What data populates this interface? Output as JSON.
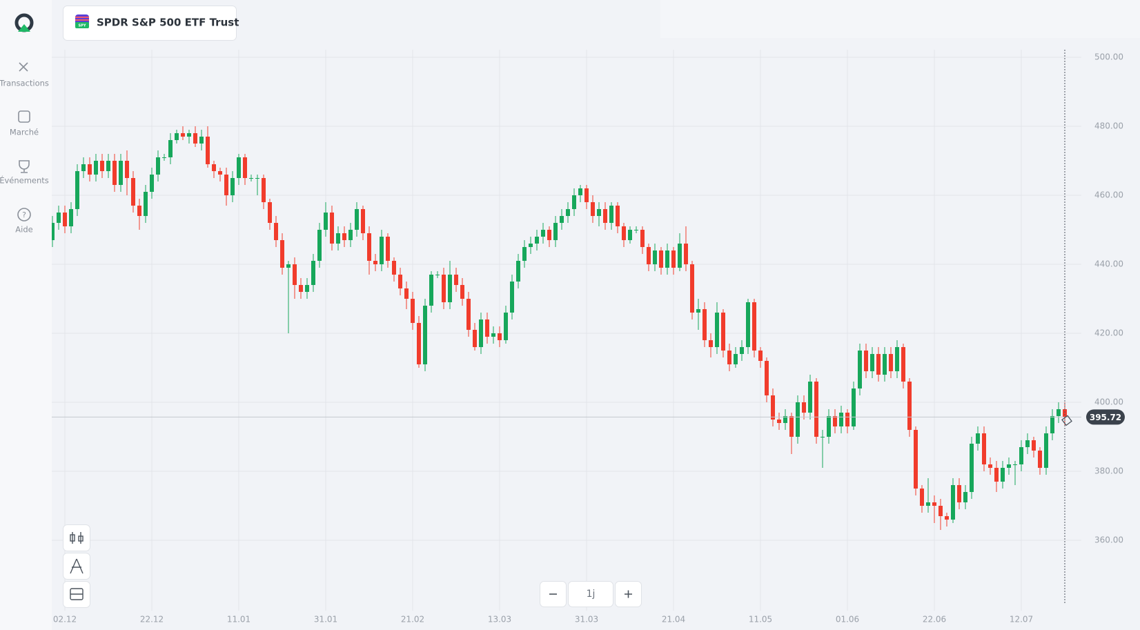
{
  "header": {
    "instrument": "SPDR S&P 500 ETF Trust",
    "icon_label": "SPY"
  },
  "nav": [
    "Transactions",
    "Marché",
    "Événements",
    "Aide"
  ],
  "zoom": {
    "label": "1j"
  },
  "chart_data": {
    "type": "candlestick",
    "up_color": "#17a75b",
    "down_color": "#f13c2c",
    "categories": [
      null,
      null,
      "02.12",
      null,
      null,
      null,
      null,
      null,
      null,
      null,
      null,
      null,
      null,
      null,
      null,
      null,
      "22.12",
      null,
      null,
      null,
      null,
      null,
      null,
      null,
      null,
      null,
      null,
      null,
      null,
      null,
      "11.01",
      null,
      null,
      null,
      null,
      null,
      null,
      null,
      null,
      null,
      null,
      null,
      null,
      null,
      "31.01",
      null,
      null,
      null,
      null,
      null,
      null,
      null,
      null,
      null,
      null,
      null,
      null,
      null,
      "21.02",
      null,
      null,
      null,
      null,
      null,
      null,
      null,
      null,
      null,
      null,
      null,
      null,
      null,
      "13.03",
      null,
      null,
      null,
      null,
      null,
      null,
      null,
      null,
      null,
      null,
      null,
      null,
      null,
      "31.03",
      null,
      null,
      null,
      null,
      null,
      null,
      null,
      null,
      null,
      null,
      null,
      null,
      null,
      "21.04",
      null,
      null,
      null,
      null,
      null,
      null,
      null,
      null,
      null,
      null,
      null,
      null,
      null,
      "11.05",
      null,
      null,
      null,
      null,
      null,
      null,
      null,
      null,
      null,
      null,
      null,
      null,
      null,
      "01.06",
      null,
      null,
      null,
      null,
      null,
      null,
      null,
      null,
      null,
      null,
      null,
      null,
      null,
      "22.06",
      null,
      null,
      null,
      null,
      null,
      null,
      null,
      null,
      null,
      null,
      null,
      null,
      null,
      "12.07",
      null,
      null,
      null,
      null,
      null,
      null,
      null
    ],
    "open": [
      447,
      452,
      455,
      451,
      456,
      467,
      469,
      466,
      470,
      467,
      470,
      463,
      470,
      465,
      457,
      454,
      461,
      466,
      471,
      471,
      476,
      478,
      477,
      478,
      475,
      477,
      469,
      467,
      466,
      460,
      465,
      471,
      465,
      465,
      465,
      458,
      452,
      447,
      439,
      440,
      434,
      432,
      434,
      441,
      450,
      455,
      446,
      449,
      447,
      450,
      456,
      449,
      441,
      440,
      448,
      441,
      437,
      433,
      430,
      423,
      411,
      428,
      437,
      437,
      429,
      437,
      434,
      430,
      421,
      416,
      424,
      419,
      420,
      418,
      426,
      435,
      441,
      445,
      446,
      448,
      450,
      447,
      452,
      454,
      456,
      460,
      462,
      458,
      454,
      456,
      452,
      457,
      451,
      447,
      450,
      450,
      445,
      440,
      444,
      439,
      444,
      439,
      446,
      440,
      426,
      427,
      418,
      416,
      426,
      415,
      411,
      414,
      416,
      429,
      415,
      412,
      402,
      395,
      394,
      396,
      390,
      400,
      397,
      406,
      390,
      390,
      396,
      393,
      397,
      393,
      404,
      415,
      409,
      414,
      408,
      414,
      409,
      416,
      406,
      392,
      375,
      370,
      371,
      370,
      367,
      366,
      376,
      371,
      374,
      388,
      391,
      382,
      381,
      377,
      381,
      382,
      382,
      387,
      389,
      386,
      381,
      391,
      396,
      398
    ],
    "high": [
      454,
      457,
      457,
      458,
      469,
      471,
      471,
      472,
      472,
      472,
      472,
      472,
      473,
      467,
      459,
      463,
      468,
      473,
      472,
      478,
      479,
      480,
      479,
      480,
      479,
      480,
      470,
      468,
      468,
      467,
      472,
      472,
      466,
      466,
      466,
      459,
      454,
      449,
      441,
      442,
      436,
      436,
      443,
      452,
      458,
      457,
      451,
      451,
      452,
      458,
      457,
      451,
      443,
      450,
      449,
      442,
      439,
      435,
      432,
      425,
      430,
      438,
      438,
      439,
      441,
      439,
      436,
      432,
      423,
      426,
      426,
      422,
      422,
      428,
      437,
      443,
      447,
      448,
      450,
      452,
      451,
      454,
      456,
      458,
      462,
      463,
      463,
      460,
      458,
      458,
      458,
      458,
      452,
      451,
      451,
      451,
      446,
      446,
      445,
      446,
      445,
      449,
      451,
      441,
      430,
      429,
      420,
      429,
      427,
      417,
      416,
      418,
      430,
      430,
      416,
      413,
      404,
      397,
      398,
      397,
      402,
      402,
      408,
      407,
      392,
      398,
      398,
      399,
      398,
      406,
      417,
      417,
      416,
      416,
      416,
      416,
      418,
      417,
      407,
      393,
      376,
      378,
      373,
      372,
      368,
      378,
      378,
      376,
      390,
      393,
      393,
      384,
      383,
      383,
      384,
      383,
      389,
      391,
      390,
      387,
      393,
      398,
      400,
      400
    ],
    "low": [
      445,
      450,
      449,
      449,
      454,
      465,
      464,
      464,
      465,
      465,
      461,
      461,
      460,
      455,
      450,
      452,
      459,
      464,
      470,
      469,
      475,
      476,
      475,
      474,
      473,
      468,
      465,
      464,
      457,
      458,
      463,
      463,
      464,
      460,
      456,
      450,
      445,
      437,
      420,
      430,
      430,
      430,
      432,
      439,
      448,
      444,
      444,
      445,
      445,
      448,
      447,
      437,
      438,
      438,
      439,
      435,
      431,
      427,
      421,
      410,
      409,
      426,
      436,
      427,
      427,
      432,
      428,
      419,
      415,
      414,
      417,
      417,
      416,
      417,
      424,
      433,
      439,
      443,
      444,
      446,
      445,
      445,
      450,
      452,
      454,
      458,
      456,
      452,
      451,
      450,
      450,
      449,
      445,
      446,
      449,
      443,
      438,
      438,
      437,
      437,
      437,
      438,
      438,
      424,
      421,
      416,
      413,
      414,
      413,
      409,
      410,
      412,
      414,
      413,
      410,
      400,
      393,
      392,
      392,
      385,
      388,
      395,
      395,
      388,
      381,
      388,
      391,
      391,
      391,
      392,
      402,
      407,
      407,
      406,
      406,
      407,
      407,
      404,
      390,
      373,
      368,
      368,
      365,
      363,
      364,
      365,
      369,
      369,
      372,
      386,
      380,
      379,
      374,
      375,
      379,
      376,
      380,
      385,
      384,
      379,
      379,
      389,
      394,
      393
    ],
    "close": [
      452,
      455,
      451,
      456,
      467,
      469,
      466,
      470,
      467,
      470,
      463,
      470,
      465,
      457,
      454,
      461,
      466,
      471,
      471,
      476,
      478,
      477,
      478,
      475,
      477,
      469,
      467,
      466,
      460,
      465,
      471,
      465,
      465,
      465,
      458,
      452,
      447,
      439,
      440,
      434,
      432,
      434,
      441,
      450,
      455,
      446,
      449,
      447,
      450,
      456,
      449,
      441,
      440,
      448,
      441,
      437,
      433,
      430,
      423,
      411,
      428,
      437,
      437,
      429,
      437,
      434,
      430,
      421,
      416,
      424,
      419,
      420,
      418,
      426,
      435,
      441,
      445,
      446,
      448,
      450,
      447,
      452,
      454,
      456,
      460,
      462,
      458,
      454,
      456,
      452,
      457,
      451,
      447,
      450,
      450,
      445,
      440,
      444,
      439,
      444,
      439,
      446,
      440,
      426,
      427,
      418,
      416,
      426,
      415,
      411,
      414,
      416,
      429,
      415,
      412,
      402,
      395,
      394,
      396,
      390,
      400,
      397,
      406,
      390,
      390,
      396,
      393,
      397,
      393,
      404,
      415,
      409,
      414,
      408,
      414,
      409,
      416,
      406,
      392,
      375,
      370,
      371,
      370,
      367,
      366,
      376,
      371,
      374,
      388,
      391,
      382,
      381,
      377,
      381,
      382,
      382,
      387,
      389,
      386,
      381,
      391,
      396,
      398,
      395.72
    ],
    "ylim": [
      339.6,
      502.2
    ],
    "yticks": [
      {
        "value": 360,
        "label": "360.00"
      },
      {
        "value": 380,
        "label": "380.00"
      },
      {
        "value": 400,
        "label": "400.00"
      },
      {
        "value": 420,
        "label": "420.00"
      },
      {
        "value": 440,
        "label": "440.00"
      },
      {
        "value": 460,
        "label": "460.00"
      },
      {
        "value": 480,
        "label": "480.00"
      },
      {
        "value": 500,
        "label": "500.00"
      }
    ],
    "grid": true
  }
}
